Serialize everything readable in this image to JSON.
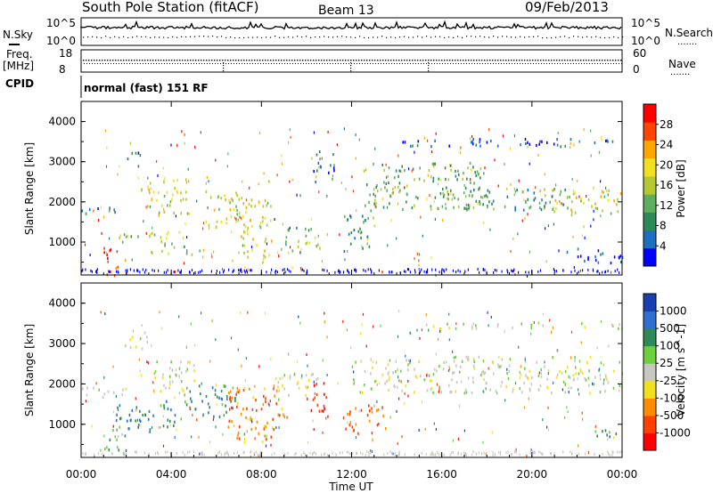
{
  "header": {
    "station": "South Pole Station (fitACF)",
    "beam": "Beam 13",
    "date": "09/Feb/2013"
  },
  "left_labels": {
    "nsky": "N.Sky",
    "freq": "Freq.",
    "mhz": "[MHz]",
    "cpid": "CPID"
  },
  "right_labels": {
    "nsearch": "N.Search",
    "nave": "Nave",
    "dots": "......."
  },
  "noise_axis": {
    "top": "10^5",
    "bottom": "10^0"
  },
  "freq_axis": {
    "top": "18",
    "bottom": "8"
  },
  "nave_axis": {
    "top": "60",
    "bottom": "0"
  },
  "cpid_text": "normal (fast) 151 RF",
  "colors": {
    "power": [
      "#0000ff",
      "#1e6fc0",
      "#2e8b57",
      "#5fae5f",
      "#b5c830",
      "#f0e020",
      "#ffa500",
      "#ff4500",
      "#ff0000"
    ],
    "velocity": [
      "#1a3fb0",
      "#2f6fcf",
      "#2e8b57",
      "#6ccf3c",
      "#c8c8c0",
      "#f0e020",
      "#ff8c00",
      "#ff4000",
      "#ff0000"
    ]
  },
  "chart_data": [
    {
      "type": "heatmap",
      "name": "power",
      "ylabel": "Slant Range [km]",
      "xlabel": "",
      "x_ticks": [
        "00:00",
        "04:00",
        "08:00",
        "12:00",
        "16:00",
        "20:00",
        "00:00"
      ],
      "y_ticks": [
        "1000",
        "2000",
        "3000",
        "4000"
      ],
      "xlim": [
        0,
        24
      ],
      "ylim": [
        180,
        4500
      ],
      "colorbar": {
        "label": "Power [dB]",
        "ticks": [
          "4",
          "8",
          "12",
          "16",
          "20",
          "24",
          "28"
        ],
        "range": [
          0,
          30
        ]
      },
      "regions": [
        {
          "t": [
            0.0,
            1.8
          ],
          "r": [
            1700,
            1950
          ],
          "level": 0.25
        },
        {
          "t": [
            1.0,
            2.0
          ],
          "r": [
            200,
            900
          ],
          "level": 0.9
        },
        {
          "t": [
            1.2,
            2.6
          ],
          "r": [
            1000,
            1300
          ],
          "level": 0.45
        },
        {
          "t": [
            2.0,
            2.8
          ],
          "r": [
            2900,
            3300
          ],
          "level": 0.2
        },
        {
          "t": [
            2.5,
            4.8
          ],
          "r": [
            1700,
            2600
          ],
          "level": 0.55
        },
        {
          "t": [
            3.0,
            5.0
          ],
          "r": [
            700,
            1300
          ],
          "level": 0.5
        },
        {
          "t": [
            5.5,
            7.5
          ],
          "r": [
            1400,
            2300
          ],
          "level": 0.55
        },
        {
          "t": [
            7.0,
            8.5
          ],
          "r": [
            600,
            2100
          ],
          "level": 0.6
        },
        {
          "t": [
            9.0,
            10.6
          ],
          "r": [
            700,
            1400
          ],
          "level": 0.45
        },
        {
          "t": [
            10.2,
            11.2
          ],
          "r": [
            2500,
            3300
          ],
          "level": 0.25
        },
        {
          "t": [
            11.5,
            13.0
          ],
          "r": [
            800,
            1700
          ],
          "level": 0.3
        },
        {
          "t": [
            12.5,
            18.0
          ],
          "r": [
            1800,
            3000
          ],
          "level": 0.4
        },
        {
          "t": [
            16.0,
            21.5
          ],
          "r": [
            1800,
            2350
          ],
          "level": 0.3
        },
        {
          "t": [
            20.5,
            24.0
          ],
          "r": [
            1700,
            2400
          ],
          "level": 0.55
        },
        {
          "t": [
            14.0,
            24.0
          ],
          "r": [
            3400,
            3600
          ],
          "level": 0.1
        },
        {
          "t": [
            21.5,
            24.0
          ],
          "r": [
            500,
            900
          ],
          "level": 0.15
        }
      ]
    },
    {
      "type": "heatmap",
      "name": "velocity",
      "ylabel": "Slant Range [km]",
      "xlabel": "Time UT",
      "x_ticks": [
        "00:00",
        "04:00",
        "08:00",
        "12:00",
        "16:00",
        "20:00",
        "00:00"
      ],
      "y_ticks": [
        "1000",
        "2000",
        "3000",
        "4000"
      ],
      "xlim": [
        0,
        24
      ],
      "ylim": [
        180,
        4500
      ],
      "colorbar": {
        "label": "Velocity [m s^-1]",
        "ticks": [
          "1000",
          "500",
          "100",
          "25",
          "-25",
          "-100",
          "-500",
          "-1000"
        ],
        "range": [
          -1000,
          1000
        ]
      },
      "regions": [
        {
          "t": [
            0.0,
            2.0
          ],
          "r": [
            1700,
            2000
          ],
          "level": 0.5
        },
        {
          "t": [
            1.0,
            2.0
          ],
          "r": [
            200,
            900
          ],
          "level": 0.62
        },
        {
          "t": [
            2.0,
            3.0
          ],
          "r": [
            2900,
            3400
          ],
          "level": 0.5
        },
        {
          "t": [
            1.5,
            4.5
          ],
          "r": [
            900,
            1600
          ],
          "level": 0.75
        },
        {
          "t": [
            3.0,
            5.0
          ],
          "r": [
            1800,
            2600
          ],
          "level": 0.5
        },
        {
          "t": [
            4.5,
            7.0
          ],
          "r": [
            1200,
            2000
          ],
          "level": 0.72
        },
        {
          "t": [
            6.5,
            9.0
          ],
          "r": [
            600,
            2000
          ],
          "level": 0.25
        },
        {
          "t": [
            8.5,
            10.5
          ],
          "r": [
            1600,
            2300
          ],
          "level": 0.5
        },
        {
          "t": [
            10.0,
            11.0
          ],
          "r": [
            1200,
            2100
          ],
          "level": 0.15
        },
        {
          "t": [
            11.5,
            13.5
          ],
          "r": [
            800,
            1500
          ],
          "level": 0.2
        },
        {
          "t": [
            12.0,
            24.0
          ],
          "r": [
            1800,
            2700
          ],
          "level": 0.5
        },
        {
          "t": [
            15.0,
            24.0
          ],
          "r": [
            3400,
            3550
          ],
          "level": 0.5
        },
        {
          "t": [
            22.0,
            24.0
          ],
          "r": [
            700,
            900
          ],
          "level": 0.72
        }
      ]
    }
  ]
}
